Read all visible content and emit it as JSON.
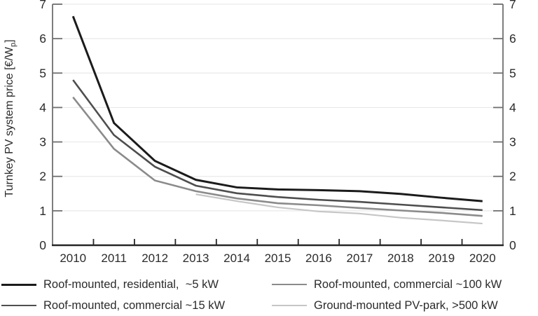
{
  "chart_data": {
    "type": "line",
    "title": "",
    "xlabel": "",
    "ylabel_parts": {
      "pre": "Turnkey PV system price [€/W",
      "sub": "p",
      "post": "]"
    },
    "x": [
      "2010",
      "2011",
      "2012",
      "2013",
      "2014",
      "2015",
      "2016",
      "2017",
      "2018",
      "2019",
      "2020"
    ],
    "ylim": [
      0,
      7
    ],
    "yticks": [
      0,
      1,
      2,
      3,
      4,
      5,
      6,
      7
    ],
    "grid": true,
    "mirrored_y_axis": true,
    "legend_position": "bottom-two-columns",
    "colors": {
      "grid": "#e9e9e9",
      "y_axis": "#6f6f6f",
      "x_axis": "#262626",
      "text": "#2b2b2b",
      "background": "#ffffff"
    },
    "series": [
      {
        "name": "Roof-mounted, residential,  ~5 kW",
        "color": "#1b1b1b",
        "stroke_width": 3.0,
        "values": [
          6.65,
          3.55,
          2.45,
          1.9,
          1.68,
          1.62,
          1.6,
          1.57,
          1.49,
          1.38,
          1.28
        ]
      },
      {
        "name": "Roof-mounted, commercial ~15 kW",
        "color": "#4e4e4e",
        "stroke_width": 2.6,
        "values": [
          4.8,
          3.2,
          2.28,
          1.73,
          1.51,
          1.4,
          1.32,
          1.26,
          1.18,
          1.1,
          1.02
        ]
      },
      {
        "name": "Roof-mounted, commercial ~100 kW",
        "color": "#8b8b8b",
        "stroke_width": 2.6,
        "values": [
          4.3,
          2.8,
          1.88,
          1.57,
          1.36,
          1.22,
          1.16,
          1.08,
          1.01,
          0.94,
          0.85
        ]
      },
      {
        "name": "Ground-mounted PV-park, >500 kW",
        "color": "#c6c6c6",
        "stroke_width": 2.2,
        "values": [
          null,
          null,
          null,
          1.48,
          1.28,
          1.1,
          0.98,
          0.92,
          0.8,
          0.72,
          0.63
        ]
      }
    ]
  }
}
